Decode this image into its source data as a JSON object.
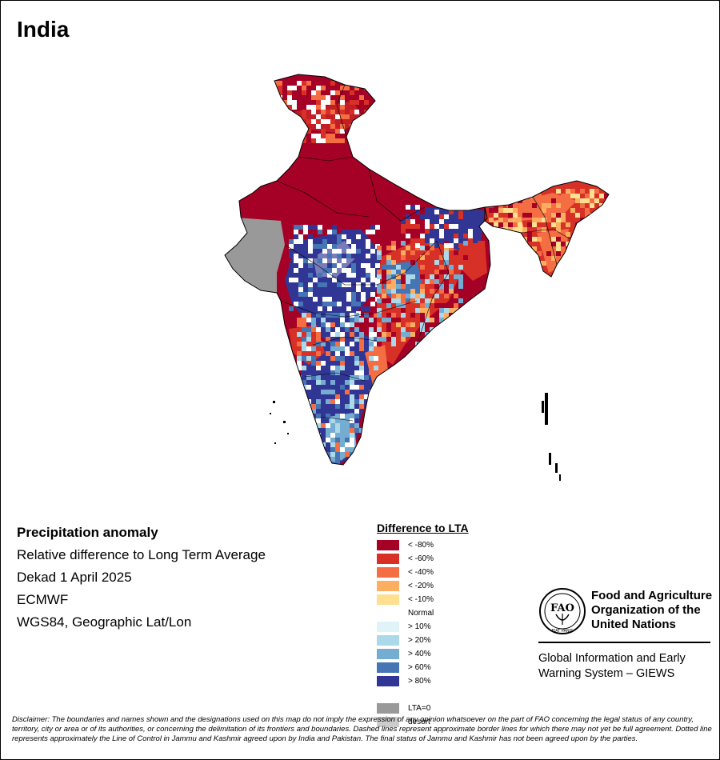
{
  "map": {
    "title": "India",
    "colors": {
      "lt80": "#a50026",
      "lt60": "#d73027",
      "lt40": "#f46d43",
      "lt20": "#fdae61",
      "lt10": "#fee090",
      "normal": "#ffffff",
      "gt10": "#e0f3f8",
      "gt20": "#abd9e9",
      "gt40": "#74add1",
      "gt60": "#4575b4",
      "gt80": "#313695",
      "lta0": "#999999",
      "desert": "#cccccc"
    }
  },
  "info": {
    "heading": "Precipitation anomaly",
    "lines": [
      "Relative difference to Long Term Average",
      "Dekad 1 April 2025",
      "ECMWF",
      "WGS84, Geographic Lat/Lon"
    ]
  },
  "legend": {
    "title": "Difference to LTA",
    "items": [
      {
        "label": "< -80%",
        "color": "#a50026"
      },
      {
        "label": "< -60%",
        "color": "#d73027"
      },
      {
        "label": "< -40%",
        "color": "#f46d43"
      },
      {
        "label": "< -20%",
        "color": "#fdae61"
      },
      {
        "label": "< -10%",
        "color": "#fee090"
      },
      {
        "label": "Normal",
        "color": "#ffffff"
      },
      {
        "label": "> 10%",
        "color": "#e0f3f8"
      },
      {
        "label": "> 20%",
        "color": "#abd9e9"
      },
      {
        "label": "> 40%",
        "color": "#74add1"
      },
      {
        "label": "> 60%",
        "color": "#4575b4"
      },
      {
        "label": "> 80%",
        "color": "#313695"
      },
      {
        "label": "",
        "color": "#ffffff"
      },
      {
        "label": "LTA=0",
        "color": "#999999"
      },
      {
        "label": "desert",
        "color": "#cccccc"
      }
    ]
  },
  "logo": {
    "org_name": "Food and Agriculture Organization of the United Nations",
    "seal_text": "FIAT PANIS",
    "seal_letters": "FAO",
    "system_name": "Global Information and Early Warning System – GIEWS"
  },
  "disclaimer": "Disclaimer: The boundaries and names shown and the designations used on this map do not imply the expression of any opinion whatsoever on the part of FAO concerning the legal status of any country, territory, city or area or of its authorities, or concerning the delimitation of its frontiers and boundaries. Dashed lines represent approximate border lines for which there may not yet be full agreement. Dotted line represents approximately the Line of Control in Jammu and Kashmir agreed upon by India and Pakistan. The final status of Jammu and Kashmir has not been agreed upon by the parties."
}
